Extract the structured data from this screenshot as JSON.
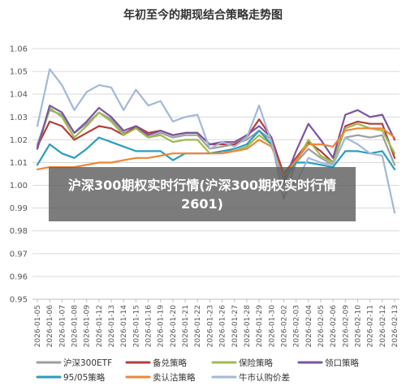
{
  "overlay": {
    "text": "沪深300期权实时行情(沪深300期权实时行情2601)"
  },
  "chart_data": {
    "type": "line",
    "title": "年初至今的期现结合策略走势图",
    "xlabel": "",
    "ylabel": "",
    "ylim": [
      0.95,
      1.06
    ],
    "yticks": [
      "0.95",
      "0.96",
      "0.97",
      "0.98",
      "0.99",
      "1.00",
      "1.01",
      "1.02",
      "1.03",
      "1.04",
      "1.05",
      "1.06"
    ],
    "grid": "horizontal",
    "legend_position": "bottom",
    "x": [
      "2026-01-05",
      "2026-01-06",
      "2026-01-07",
      "2026-01-08",
      "2026-01-09",
      "2026-01-12",
      "2026-01-13",
      "2026-01-14",
      "2026-01-15",
      "2026-01-16",
      "2026-01-19",
      "2026-01-20",
      "2026-01-21",
      "2026-01-22",
      "2026-01-23",
      "2026-01-26",
      "2026-01-27",
      "2026-01-28",
      "2026-01-29",
      "2026-01-30",
      "2026-02-02",
      "2026-02-03",
      "2026-02-04",
      "2026-02-05",
      "2026-02-06",
      "2026-02-09",
      "2026-02-10",
      "2026-02-11",
      "2026-02-12",
      "2026-02-13"
    ],
    "series": [
      {
        "name": "沪深300ETF",
        "color": "#9e9e9e",
        "values": [
          1.018,
          1.033,
          1.031,
          1.023,
          1.027,
          1.032,
          1.029,
          1.023,
          1.025,
          1.021,
          1.023,
          1.021,
          1.022,
          1.022,
          1.016,
          1.017,
          1.018,
          1.02,
          1.024,
          1.02,
          0.994,
          1.01,
          1.016,
          1.012,
          1.009,
          1.021,
          1.022,
          1.021,
          1.022,
          1.009
        ]
      },
      {
        "name": "备兑策略",
        "color": "#b43c3c",
        "values": [
          1.017,
          1.028,
          1.026,
          1.02,
          1.023,
          1.026,
          1.025,
          1.022,
          1.026,
          1.023,
          1.024,
          1.022,
          1.023,
          1.023,
          1.018,
          1.018,
          1.018,
          1.021,
          1.029,
          1.021,
          1.005,
          1.012,
          1.019,
          1.015,
          1.01,
          1.026,
          1.028,
          1.027,
          1.027,
          1.012
        ]
      },
      {
        "name": "保险策略",
        "color": "#9dbb4d",
        "values": [
          1.016,
          1.034,
          1.03,
          1.021,
          1.026,
          1.032,
          1.028,
          1.022,
          1.025,
          1.021,
          1.022,
          1.019,
          1.02,
          1.02,
          1.014,
          1.015,
          1.015,
          1.017,
          1.022,
          1.018,
          1.001,
          1.01,
          1.02,
          1.013,
          1.01,
          1.025,
          1.027,
          1.025,
          1.024,
          1.014
        ]
      },
      {
        "name": "领口策略",
        "color": "#7a55a0",
        "values": [
          1.016,
          1.035,
          1.032,
          1.023,
          1.028,
          1.034,
          1.03,
          1.024,
          1.026,
          1.022,
          1.024,
          1.022,
          1.023,
          1.023,
          1.018,
          1.019,
          1.019,
          1.022,
          1.026,
          1.021,
          1.001,
          1.015,
          1.027,
          1.02,
          1.012,
          1.031,
          1.033,
          1.03,
          1.031,
          1.02
        ]
      },
      {
        "name": "95/05策略",
        "color": "#2a9dbf",
        "values": [
          1.009,
          1.018,
          1.014,
          1.012,
          1.016,
          1.021,
          1.019,
          1.017,
          1.015,
          1.015,
          1.015,
          1.011,
          1.014,
          1.014,
          1.014,
          1.015,
          1.016,
          1.018,
          1.024,
          1.018,
          1.003,
          1.01,
          1.01,
          1.009,
          1.008,
          1.015,
          1.015,
          1.014,
          1.015,
          1.007
        ]
      },
      {
        "name": "卖认沽策略",
        "color": "#ee8636",
        "values": [
          1.007,
          1.008,
          1.008,
          1.008,
          1.009,
          1.01,
          1.01,
          1.011,
          1.012,
          1.012,
          1.013,
          1.014,
          1.014,
          1.014,
          1.014,
          1.014,
          1.015,
          1.016,
          1.02,
          1.017,
          1.004,
          1.011,
          1.018,
          1.018,
          1.017,
          1.024,
          1.025,
          1.025,
          1.025,
          1.021
        ]
      },
      {
        "name": "牛市认购价差",
        "color": "#a3b8d8",
        "values": [
          1.026,
          1.051,
          1.044,
          1.033,
          1.041,
          1.044,
          1.043,
          1.033,
          1.042,
          1.035,
          1.037,
          1.028,
          1.03,
          1.031,
          1.016,
          1.019,
          1.017,
          1.021,
          1.035,
          1.019,
          1.0,
          1.001,
          1.012,
          1.01,
          1.009,
          1.021,
          1.018,
          1.014,
          1.013,
          0.988
        ]
      }
    ]
  }
}
